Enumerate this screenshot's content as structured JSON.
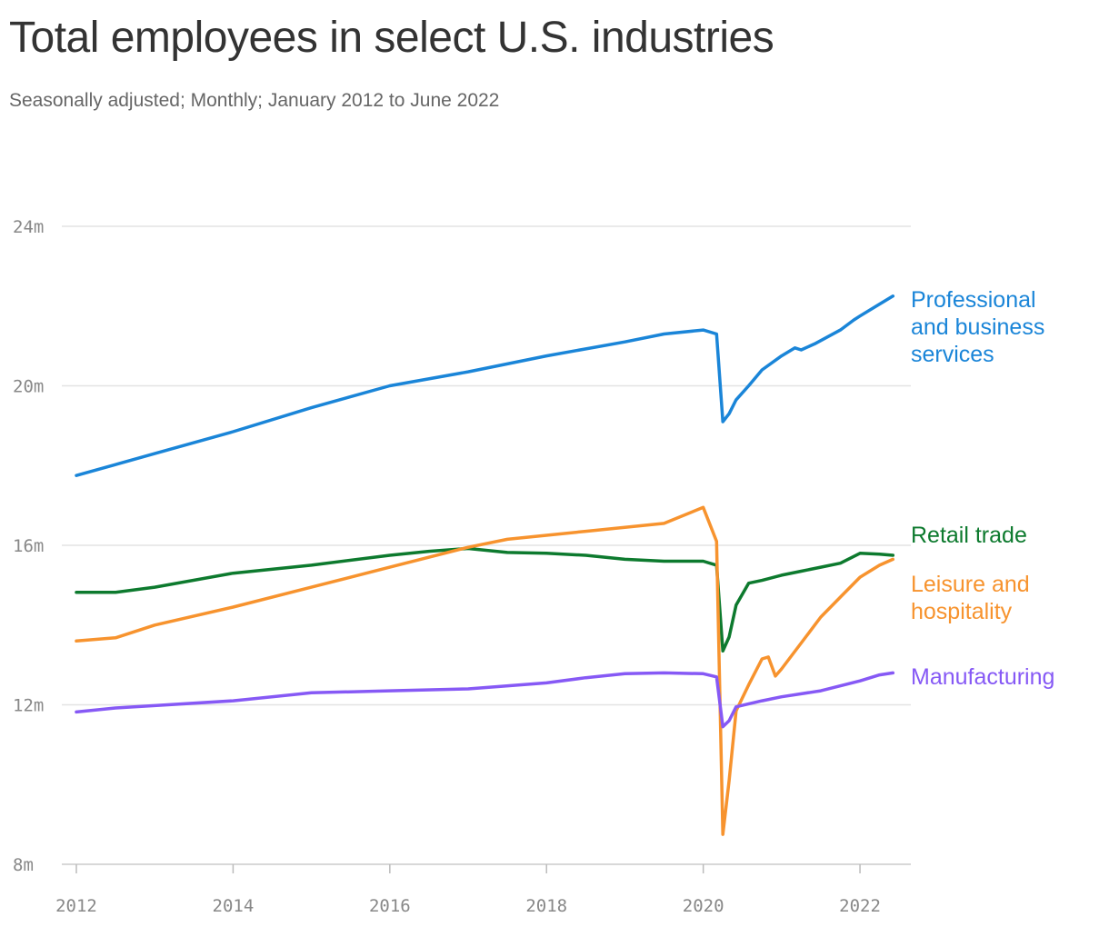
{
  "chart_data": {
    "type": "line",
    "title": "Total employees in select U.S. industries",
    "subtitle": "Seasonally adjusted; Monthly; January 2012 to June 2022",
    "xlabel": "",
    "ylabel": "",
    "xlim": [
      2012.0,
      2022.417
    ],
    "ylim": [
      8,
      24
    ],
    "x_ticks": [
      {
        "value": 2012,
        "label": "2012"
      },
      {
        "value": 2014,
        "label": "2014"
      },
      {
        "value": 2016,
        "label": "2016"
      },
      {
        "value": 2018,
        "label": "2018"
      },
      {
        "value": 2020,
        "label": "2020"
      },
      {
        "value": 2022,
        "label": "2022"
      }
    ],
    "y_ticks": [
      {
        "value": 8,
        "label": "8m"
      },
      {
        "value": 12,
        "label": "12m"
      },
      {
        "value": 16,
        "label": "16m"
      },
      {
        "value": 20,
        "label": "20m"
      },
      {
        "value": 24,
        "label": "24m"
      }
    ],
    "grid": true,
    "legend": "direct labels at right end of lines",
    "series": [
      {
        "name": "Professional and business services",
        "label_lines": [
          "Professional",
          "and business",
          "services"
        ],
        "color": "#1a85d8",
        "points": [
          [
            2012.0,
            17.75
          ],
          [
            2013.0,
            18.3
          ],
          [
            2014.0,
            18.85
          ],
          [
            2015.0,
            19.45
          ],
          [
            2016.0,
            20.0
          ],
          [
            2017.0,
            20.35
          ],
          [
            2018.0,
            20.75
          ],
          [
            2019.0,
            21.1
          ],
          [
            2019.5,
            21.3
          ],
          [
            2020.0,
            21.4
          ],
          [
            2020.17,
            21.3
          ],
          [
            2020.25,
            19.1
          ],
          [
            2020.33,
            19.3
          ],
          [
            2020.42,
            19.65
          ],
          [
            2020.58,
            20.0
          ],
          [
            2020.75,
            20.4
          ],
          [
            2021.0,
            20.75
          ],
          [
            2021.17,
            20.95
          ],
          [
            2021.25,
            20.9
          ],
          [
            2021.42,
            21.05
          ],
          [
            2021.75,
            21.4
          ],
          [
            2021.92,
            21.65
          ],
          [
            2022.0,
            21.75
          ],
          [
            2022.25,
            22.05
          ],
          [
            2022.42,
            22.25
          ]
        ]
      },
      {
        "name": "Retail trade",
        "label_lines": [
          "Retail trade"
        ],
        "color": "#0d7a2e",
        "points": [
          [
            2012.0,
            14.82
          ],
          [
            2012.5,
            14.82
          ],
          [
            2013.0,
            14.95
          ],
          [
            2014.0,
            15.3
          ],
          [
            2015.0,
            15.5
          ],
          [
            2016.0,
            15.75
          ],
          [
            2016.5,
            15.85
          ],
          [
            2017.0,
            15.92
          ],
          [
            2017.5,
            15.82
          ],
          [
            2018.0,
            15.8
          ],
          [
            2018.5,
            15.75
          ],
          [
            2019.0,
            15.65
          ],
          [
            2019.5,
            15.6
          ],
          [
            2020.0,
            15.6
          ],
          [
            2020.17,
            15.5
          ],
          [
            2020.25,
            13.35
          ],
          [
            2020.33,
            13.7
          ],
          [
            2020.42,
            14.5
          ],
          [
            2020.58,
            15.05
          ],
          [
            2020.75,
            15.12
          ],
          [
            2021.0,
            15.25
          ],
          [
            2021.25,
            15.35
          ],
          [
            2021.5,
            15.45
          ],
          [
            2021.75,
            15.55
          ],
          [
            2022.0,
            15.8
          ],
          [
            2022.25,
            15.78
          ],
          [
            2022.42,
            15.75
          ]
        ]
      },
      {
        "name": "Leisure and hospitality",
        "label_lines": [
          "Leisure and",
          "hospitality"
        ],
        "color": "#f7932e",
        "points": [
          [
            2012.0,
            13.6
          ],
          [
            2012.5,
            13.68
          ],
          [
            2013.0,
            14.0
          ],
          [
            2014.0,
            14.45
          ],
          [
            2015.0,
            14.95
          ],
          [
            2016.0,
            15.45
          ],
          [
            2017.0,
            15.95
          ],
          [
            2017.5,
            16.15
          ],
          [
            2018.0,
            16.25
          ],
          [
            2018.5,
            16.35
          ],
          [
            2019.0,
            16.45
          ],
          [
            2019.5,
            16.55
          ],
          [
            2020.0,
            16.95
          ],
          [
            2020.17,
            16.1
          ],
          [
            2020.25,
            8.75
          ],
          [
            2020.33,
            10.1
          ],
          [
            2020.42,
            11.85
          ],
          [
            2020.58,
            12.5
          ],
          [
            2020.75,
            13.15
          ],
          [
            2020.83,
            13.2
          ],
          [
            2020.92,
            12.72
          ],
          [
            2021.0,
            12.9
          ],
          [
            2021.25,
            13.55
          ],
          [
            2021.5,
            14.2
          ],
          [
            2021.75,
            14.7
          ],
          [
            2022.0,
            15.2
          ],
          [
            2022.25,
            15.5
          ],
          [
            2022.42,
            15.65
          ]
        ]
      },
      {
        "name": "Manufacturing",
        "label_lines": [
          "Manufacturing"
        ],
        "color": "#8659f5",
        "points": [
          [
            2012.0,
            11.82
          ],
          [
            2012.5,
            11.92
          ],
          [
            2013.0,
            11.98
          ],
          [
            2014.0,
            12.1
          ],
          [
            2015.0,
            12.3
          ],
          [
            2016.0,
            12.35
          ],
          [
            2017.0,
            12.4
          ],
          [
            2018.0,
            12.55
          ],
          [
            2018.5,
            12.68
          ],
          [
            2019.0,
            12.78
          ],
          [
            2019.5,
            12.8
          ],
          [
            2020.0,
            12.78
          ],
          [
            2020.17,
            12.7
          ],
          [
            2020.25,
            11.45
          ],
          [
            2020.33,
            11.6
          ],
          [
            2020.42,
            11.95
          ],
          [
            2020.75,
            12.1
          ],
          [
            2021.0,
            12.2
          ],
          [
            2021.5,
            12.35
          ],
          [
            2022.0,
            12.6
          ],
          [
            2022.25,
            12.75
          ],
          [
            2022.42,
            12.8
          ]
        ]
      }
    ]
  }
}
